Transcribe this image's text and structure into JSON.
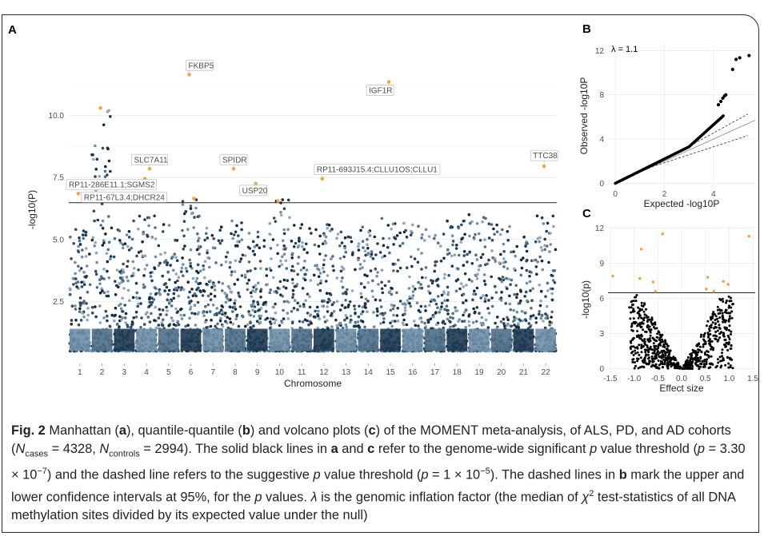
{
  "figure": {
    "panels": [
      "A",
      "B",
      "C"
    ]
  },
  "caption": {
    "fig_label": "Fig. 2",
    "t1": " Manhattan (",
    "a1": "a",
    "t2": "), quantile-quantile (",
    "b1": "b",
    "t3": ") and volcano plots (",
    "c1": "c",
    "t4": ") of the MOMENT meta-analysis, of ALS, PD, and AD cohorts (",
    "n_sym1": "N",
    "n_sub1": "cases",
    "n_val1": " = 4328, ",
    "n_sym2": "N",
    "n_sub2": "controls",
    "n_val2": " = 2994). The solid black lines in ",
    "a2": "a",
    "t5": " and ",
    "c2": "c",
    "t6": " refer to the genome-wide significant ",
    "p1": "p",
    "t7": " value threshold (",
    "p2": "p",
    "t8": " = 3.30 × 10",
    "e1": "−7",
    "t9": ") and the dashed line refers to the suggestive ",
    "p3": "p",
    "t10": " value threshold (",
    "p4": "p",
    "t11": " = 1 × 10",
    "e2": "−5",
    "t12": "). The dashed lines in ",
    "b2": "b",
    "t13": " mark the upper and lower confidence intervals at 95%, for the ",
    "p5": "p",
    "t14": " values. ",
    "lambda": "λ",
    "t15": " is the genomic inflation factor (the median of ",
    "chi": "χ",
    "chi_sup": "2",
    "t16": " test-statistics of all DNA methylation sites divided by its expected value under the null)"
  },
  "chart_data": [
    {
      "panel": "A",
      "type": "scatter",
      "subtype": "manhattan",
      "xlabel": "Chromosome",
      "ylabel": "-log10(P)",
      "categories": [
        "1",
        "2",
        "3",
        "4",
        "5",
        "6",
        "7",
        "8",
        "9",
        "10",
        "11",
        "12",
        "13",
        "14",
        "15",
        "16",
        "17",
        "18",
        "19",
        "20",
        "21",
        "22"
      ],
      "ylim": [
        0,
        12.4
      ],
      "yticks": [
        2.5,
        5.0,
        7.5,
        10.0
      ],
      "ytick_labels": [
        "2.5",
        "5.0",
        "7.5",
        "10.0"
      ],
      "genome_wide_threshold": 6.48,
      "suggestive_threshold": 5.0,
      "grid": true,
      "colors": {
        "shades": [
          "#6e8ea6",
          "#8aa7bb",
          "#4f6f87",
          "#2f4e66",
          "#1e3a52",
          "#12283b"
        ],
        "significant": "#f2a541"
      },
      "chromosome_peaks": [
        5.4,
        10.2,
        5.75,
        5.95,
        5.6,
        6.6,
        5.5,
        5.75,
        5.3,
        6.6,
        5.6,
        5.6,
        5.3,
        5.5,
        5.85,
        5.65,
        5.4,
        5.75,
        6.0,
        5.6,
        5.1,
        5.95
      ],
      "significant_points": [
        {
          "chr": "1",
          "y": 6.85,
          "label": "RP11-67L3.4;DHCR24"
        },
        {
          "chr": "2",
          "y": 10.3,
          "label": ""
        },
        {
          "chr": "4",
          "y": 7.45,
          "label": "RP11-286E11.1;SGMS2"
        },
        {
          "chr": "4",
          "y": 7.85,
          "label": "SLC7A11"
        },
        {
          "chr": "6",
          "y": 11.65,
          "label": "FKBP5"
        },
        {
          "chr": "6",
          "y": 6.65,
          "label": ""
        },
        {
          "chr": "8",
          "y": 7.85,
          "label": "SPIDR"
        },
        {
          "chr": "9",
          "y": 7.25,
          "label": "USP20"
        },
        {
          "chr": "10",
          "y": 6.55,
          "label": ""
        },
        {
          "chr": "12",
          "y": 7.45,
          "label": "RP11-693J15.4;CLLU1OS;CLLU1"
        },
        {
          "chr": "15",
          "y": 11.35,
          "label": "IGF1R"
        },
        {
          "chr": "22",
          "y": 7.95,
          "label": "TTC38"
        }
      ]
    },
    {
      "panel": "B",
      "type": "scatter",
      "subtype": "qq",
      "xlabel": "Expected -log10P",
      "ylabel": "Observed -log10P",
      "annotation": "λ = 1.1",
      "xlim": [
        -0.3,
        5.7
      ],
      "ylim": [
        -0.4,
        12.6
      ],
      "xticks": [
        0,
        2,
        4
      ],
      "yticks": [
        0,
        4,
        8,
        12
      ],
      "max_expected": 5.35,
      "extreme_points": [
        [
          4.78,
          10.3
        ],
        [
          4.92,
          11.2
        ],
        [
          5.07,
          11.35
        ],
        [
          5.45,
          11.55
        ],
        [
          4.5,
          8.0
        ]
      ]
    },
    {
      "panel": "C",
      "type": "scatter",
      "subtype": "volcano",
      "xlabel": "Effect size",
      "ylabel": "-log10(p)",
      "xlim": [
        -1.55,
        1.55
      ],
      "ylim": [
        -0.3,
        12.1
      ],
      "xticks": [
        -1.5,
        -1.0,
        -0.5,
        0.0,
        0.5,
        1.0,
        1.5
      ],
      "xtick_labels": [
        "-1.5",
        "-1.0",
        "-0.5",
        "0.0",
        "0.5",
        "1.0",
        "1.5"
      ],
      "yticks": [
        0,
        3,
        6,
        9,
        12
      ],
      "threshold": 6.48,
      "significant_points": [
        {
          "x": -1.45,
          "y": 7.9
        },
        {
          "x": -0.85,
          "y": 10.2
        },
        {
          "x": -0.88,
          "y": 7.7
        },
        {
          "x": -0.6,
          "y": 7.4
        },
        {
          "x": -0.55,
          "y": 6.6
        },
        {
          "x": -0.4,
          "y": 11.5
        },
        {
          "x": 0.55,
          "y": 7.8
        },
        {
          "x": 0.52,
          "y": 6.8
        },
        {
          "x": 0.68,
          "y": 6.6
        },
        {
          "x": 0.88,
          "y": 7.45
        },
        {
          "x": 0.98,
          "y": 7.2
        },
        {
          "x": 1.42,
          "y": 11.3
        }
      ]
    }
  ]
}
